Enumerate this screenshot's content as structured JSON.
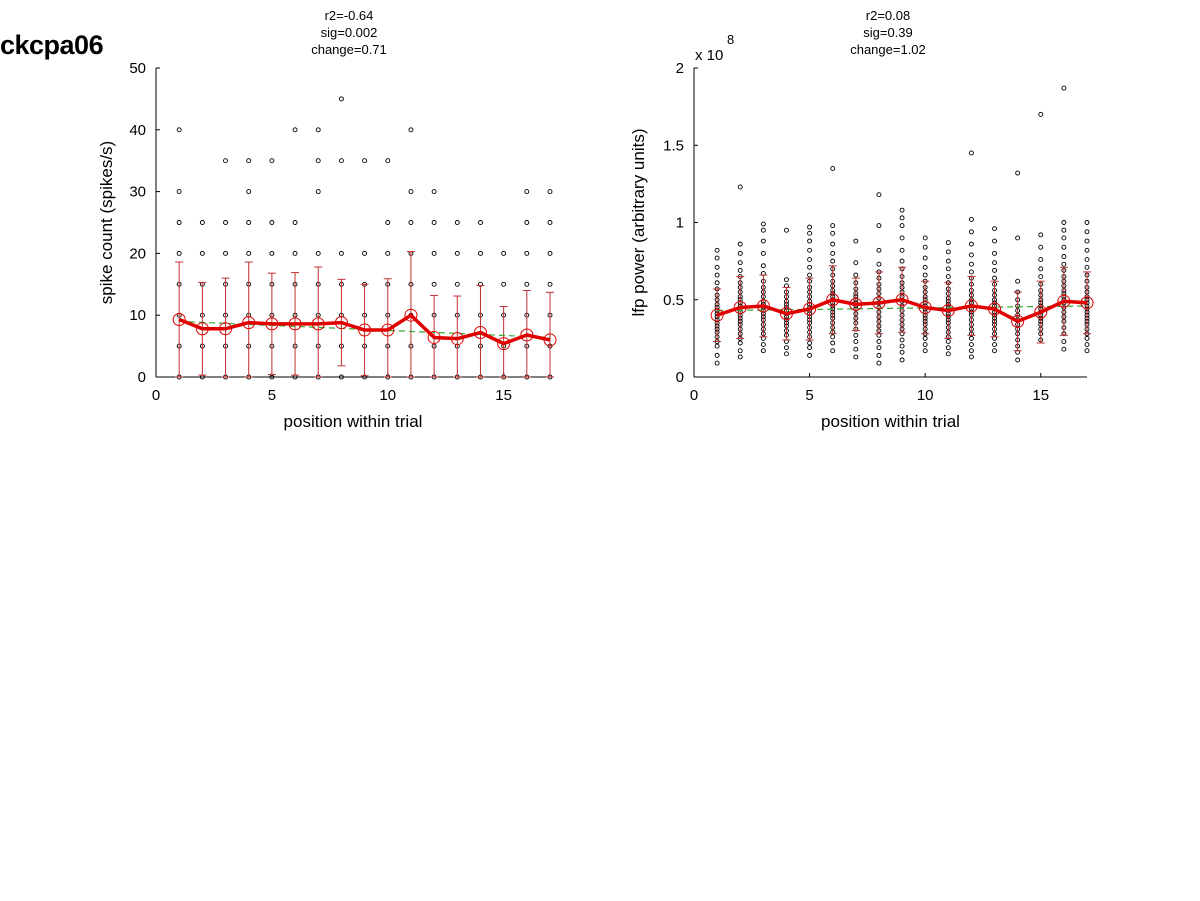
{
  "figure_title": "ckcpa06",
  "chart_data": [
    {
      "type": "scatter",
      "id": "spikes",
      "stats": [
        "r2=-0.64",
        "sig=0.002",
        "change=0.71"
      ],
      "xlabel": "position within trial",
      "ylabel": "spike count (spikes/s)",
      "xlim": [
        0,
        17
      ],
      "ylim": [
        0,
        50
      ],
      "xticks": [
        0,
        5,
        10,
        15
      ],
      "xtick_labels": [
        "0",
        "5",
        "10",
        "15"
      ],
      "yticks": [
        0,
        10,
        20,
        30,
        40,
        50
      ],
      "ytick_labels": [
        "0",
        "10",
        "20",
        "30",
        "40",
        "50"
      ],
      "exponent_label": "",
      "grid": false,
      "colors": {
        "points": "#000000",
        "mean_line": "#e00000",
        "error_bars": "#c03030",
        "fit_line": "#33aa33"
      },
      "scatter_points": [
        {
          "x": 1,
          "y": [
            0,
            5,
            10,
            15,
            20,
            25,
            30,
            40
          ]
        },
        {
          "x": 2,
          "y": [
            0,
            5,
            10,
            15,
            20,
            25
          ]
        },
        {
          "x": 3,
          "y": [
            0,
            5,
            10,
            15,
            20,
            25,
            35
          ]
        },
        {
          "x": 4,
          "y": [
            0,
            5,
            10,
            15,
            20,
            25,
            30,
            35
          ]
        },
        {
          "x": 5,
          "y": [
            0,
            5,
            10,
            15,
            20,
            25,
            35
          ]
        },
        {
          "x": 6,
          "y": [
            0,
            5,
            10,
            15,
            20,
            25,
            40
          ]
        },
        {
          "x": 7,
          "y": [
            0,
            5,
            10,
            15,
            20,
            30,
            35,
            40
          ]
        },
        {
          "x": 8,
          "y": [
            0,
            5,
            10,
            15,
            20,
            35,
            45
          ]
        },
        {
          "x": 9,
          "y": [
            0,
            5,
            10,
            15,
            20,
            35
          ]
        },
        {
          "x": 10,
          "y": [
            0,
            5,
            10,
            15,
            20,
            25,
            35
          ]
        },
        {
          "x": 11,
          "y": [
            0,
            5,
            10,
            15,
            20,
            25,
            30,
            40
          ]
        },
        {
          "x": 12,
          "y": [
            0,
            5,
            10,
            15,
            20,
            25,
            30
          ]
        },
        {
          "x": 13,
          "y": [
            0,
            5,
            10,
            15,
            20,
            25
          ]
        },
        {
          "x": 14,
          "y": [
            0,
            5,
            10,
            15,
            20,
            25
          ]
        },
        {
          "x": 15,
          "y": [
            0,
            5,
            10,
            15,
            20
          ]
        },
        {
          "x": 16,
          "y": [
            0,
            5,
            10,
            15,
            20,
            25,
            30
          ]
        },
        {
          "x": 17,
          "y": [
            0,
            5,
            10,
            15,
            20,
            25,
            30
          ]
        }
      ],
      "mean_series": {
        "x": [
          1,
          2,
          3,
          4,
          5,
          6,
          7,
          8,
          9,
          10,
          11,
          12,
          13,
          14,
          15,
          16,
          17
        ],
        "y": [
          9.3,
          7.8,
          7.8,
          8.8,
          8.6,
          8.6,
          8.6,
          8.8,
          7.6,
          7.6,
          10.0,
          6.4,
          6.2,
          7.2,
          5.4,
          6.8,
          6.0
        ],
        "err": [
          9.3,
          7.5,
          8.2,
          9.8,
          8.2,
          8.3,
          9.2,
          7.0,
          7.4,
          8.3,
          10.3,
          6.8,
          6.9,
          7.6,
          6.0,
          7.2,
          7.7
        ]
      },
      "fit_line": {
        "x": [
          1,
          17
        ],
        "y": [
          9.0,
          6.4
        ]
      }
    },
    {
      "type": "scatter",
      "id": "lfp",
      "stats": [
        "r2=0.08",
        "sig=0.39",
        "change=1.02"
      ],
      "xlabel": "position within trial",
      "ylabel": "lfp power (arbitrary units)",
      "xlim": [
        0,
        17
      ],
      "ylim": [
        0,
        2
      ],
      "xticks": [
        0,
        5,
        10,
        15
      ],
      "xtick_labels": [
        "0",
        "5",
        "10",
        "15"
      ],
      "yticks": [
        0,
        0.5,
        1,
        1.5,
        2
      ],
      "ytick_labels": [
        "0",
        "0.5",
        "1",
        "1.5",
        "2"
      ],
      "exponent_label": "x 10",
      "exponent_power": "8",
      "grid": false,
      "colors": {
        "points": "#000000",
        "mean_line": "#e00000",
        "error_bars": "#c03030",
        "fit_line": "#33aa33"
      },
      "scatter_points": [
        {
          "x": 1,
          "y": [
            0.09,
            0.14,
            0.2,
            0.23,
            0.26,
            0.29,
            0.31,
            0.33,
            0.35,
            0.37,
            0.39,
            0.41,
            0.43,
            0.45,
            0.47,
            0.5,
            0.53,
            0.57,
            0.61,
            0.66,
            0.71,
            0.77,
            0.82
          ]
        },
        {
          "x": 2,
          "y": [
            0.13,
            0.17,
            0.22,
            0.25,
            0.28,
            0.31,
            0.34,
            0.36,
            0.38,
            0.4,
            0.42,
            0.44,
            0.46,
            0.48,
            0.5,
            0.52,
            0.55,
            0.58,
            0.61,
            0.65,
            0.69,
            0.74,
            0.8,
            0.86,
            1.23
          ]
        },
        {
          "x": 3,
          "y": [
            0.17,
            0.21,
            0.25,
            0.28,
            0.31,
            0.34,
            0.37,
            0.39,
            0.41,
            0.43,
            0.45,
            0.47,
            0.49,
            0.52,
            0.55,
            0.58,
            0.62,
            0.67,
            0.72,
            0.8,
            0.88,
            0.95,
            0.99
          ]
        },
        {
          "x": 4,
          "y": [
            0.15,
            0.19,
            0.23,
            0.27,
            0.3,
            0.33,
            0.35,
            0.37,
            0.39,
            0.41,
            0.43,
            0.45,
            0.47,
            0.49,
            0.52,
            0.55,
            0.59,
            0.63,
            0.95
          ]
        },
        {
          "x": 5,
          "y": [
            0.14,
            0.19,
            0.22,
            0.26,
            0.29,
            0.32,
            0.35,
            0.37,
            0.39,
            0.41,
            0.43,
            0.45,
            0.47,
            0.49,
            0.52,
            0.55,
            0.58,
            0.62,
            0.66,
            0.71,
            0.76,
            0.82,
            0.88,
            0.93,
            0.97
          ]
        },
        {
          "x": 6,
          "y": [
            0.17,
            0.22,
            0.26,
            0.29,
            0.32,
            0.35,
            0.38,
            0.4,
            0.42,
            0.44,
            0.46,
            0.48,
            0.5,
            0.52,
            0.54,
            0.56,
            0.59,
            0.62,
            0.66,
            0.7,
            0.75,
            0.8,
            0.86,
            0.93,
            0.98,
            1.35
          ]
        },
        {
          "x": 7,
          "y": [
            0.13,
            0.18,
            0.23,
            0.27,
            0.31,
            0.35,
            0.38,
            0.41,
            0.44,
            0.46,
            0.48,
            0.5,
            0.52,
            0.54,
            0.57,
            0.61,
            0.66,
            0.74,
            0.88
          ]
        },
        {
          "x": 8,
          "y": [
            0.09,
            0.14,
            0.19,
            0.23,
            0.27,
            0.3,
            0.33,
            0.36,
            0.39,
            0.42,
            0.45,
            0.48,
            0.51,
            0.54,
            0.57,
            0.6,
            0.64,
            0.68,
            0.73,
            0.82,
            0.98,
            1.18
          ]
        },
        {
          "x": 9,
          "y": [
            0.11,
            0.16,
            0.2,
            0.24,
            0.28,
            0.31,
            0.34,
            0.37,
            0.4,
            0.43,
            0.46,
            0.49,
            0.52,
            0.55,
            0.58,
            0.61,
            0.65,
            0.7,
            0.75,
            0.82,
            0.9,
            0.98,
            1.03,
            1.08
          ]
        },
        {
          "x": 10,
          "y": [
            0.17,
            0.21,
            0.25,
            0.28,
            0.31,
            0.34,
            0.36,
            0.38,
            0.4,
            0.42,
            0.44,
            0.46,
            0.48,
            0.5,
            0.52,
            0.55,
            0.58,
            0.62,
            0.66,
            0.71,
            0.77,
            0.84,
            0.9
          ]
        },
        {
          "x": 11,
          "y": [
            0.15,
            0.19,
            0.23,
            0.26,
            0.29,
            0.32,
            0.35,
            0.37,
            0.39,
            0.41,
            0.43,
            0.45,
            0.47,
            0.49,
            0.51,
            0.54,
            0.57,
            0.61,
            0.65,
            0.7,
            0.75,
            0.81,
            0.87
          ]
        },
        {
          "x": 12,
          "y": [
            0.13,
            0.17,
            0.21,
            0.25,
            0.28,
            0.31,
            0.34,
            0.37,
            0.4,
            0.42,
            0.44,
            0.46,
            0.48,
            0.5,
            0.53,
            0.56,
            0.6,
            0.64,
            0.68,
            0.73,
            0.79,
            0.86,
            0.94,
            1.02,
            1.45
          ]
        },
        {
          "x": 13,
          "y": [
            0.17,
            0.21,
            0.25,
            0.28,
            0.31,
            0.34,
            0.36,
            0.38,
            0.4,
            0.42,
            0.44,
            0.46,
            0.48,
            0.5,
            0.53,
            0.56,
            0.6,
            0.64,
            0.69,
            0.74,
            0.8,
            0.88,
            0.96
          ]
        },
        {
          "x": 14,
          "y": [
            0.11,
            0.16,
            0.2,
            0.24,
            0.28,
            0.31,
            0.34,
            0.37,
            0.4,
            0.43,
            0.46,
            0.5,
            0.55,
            0.62,
            0.9,
            1.32
          ]
        },
        {
          "x": 15,
          "y": [
            0.24,
            0.28,
            0.31,
            0.34,
            0.36,
            0.38,
            0.4,
            0.42,
            0.44,
            0.46,
            0.48,
            0.5,
            0.53,
            0.56,
            0.6,
            0.65,
            0.7,
            0.76,
            0.84,
            0.92,
            1.7
          ]
        },
        {
          "x": 16,
          "y": [
            0.18,
            0.23,
            0.28,
            0.32,
            0.36,
            0.39,
            0.42,
            0.45,
            0.48,
            0.5,
            0.52,
            0.54,
            0.56,
            0.59,
            0.62,
            0.65,
            0.69,
            0.73,
            0.78,
            0.84,
            0.9,
            0.95,
            1.0,
            1.87
          ]
        },
        {
          "x": 17,
          "y": [
            0.17,
            0.21,
            0.25,
            0.28,
            0.31,
            0.34,
            0.36,
            0.38,
            0.4,
            0.42,
            0.44,
            0.46,
            0.48,
            0.5,
            0.52,
            0.55,
            0.58,
            0.62,
            0.66,
            0.71,
            0.76,
            0.82,
            0.88,
            0.94,
            1.0
          ]
        }
      ],
      "mean_series": {
        "x": [
          1,
          2,
          3,
          4,
          5,
          6,
          7,
          8,
          9,
          10,
          11,
          12,
          13,
          14,
          15,
          16,
          17
        ],
        "y": [
          0.4,
          0.45,
          0.46,
          0.41,
          0.44,
          0.5,
          0.47,
          0.48,
          0.5,
          0.45,
          0.43,
          0.46,
          0.44,
          0.36,
          0.42,
          0.49,
          0.48
        ],
        "err": [
          0.17,
          0.2,
          0.2,
          0.17,
          0.2,
          0.22,
          0.17,
          0.2,
          0.21,
          0.17,
          0.18,
          0.19,
          0.18,
          0.19,
          0.2,
          0.22,
          0.2
        ]
      },
      "fit_line": {
        "x": [
          1,
          17
        ],
        "y": [
          0.43,
          0.46
        ]
      }
    }
  ]
}
